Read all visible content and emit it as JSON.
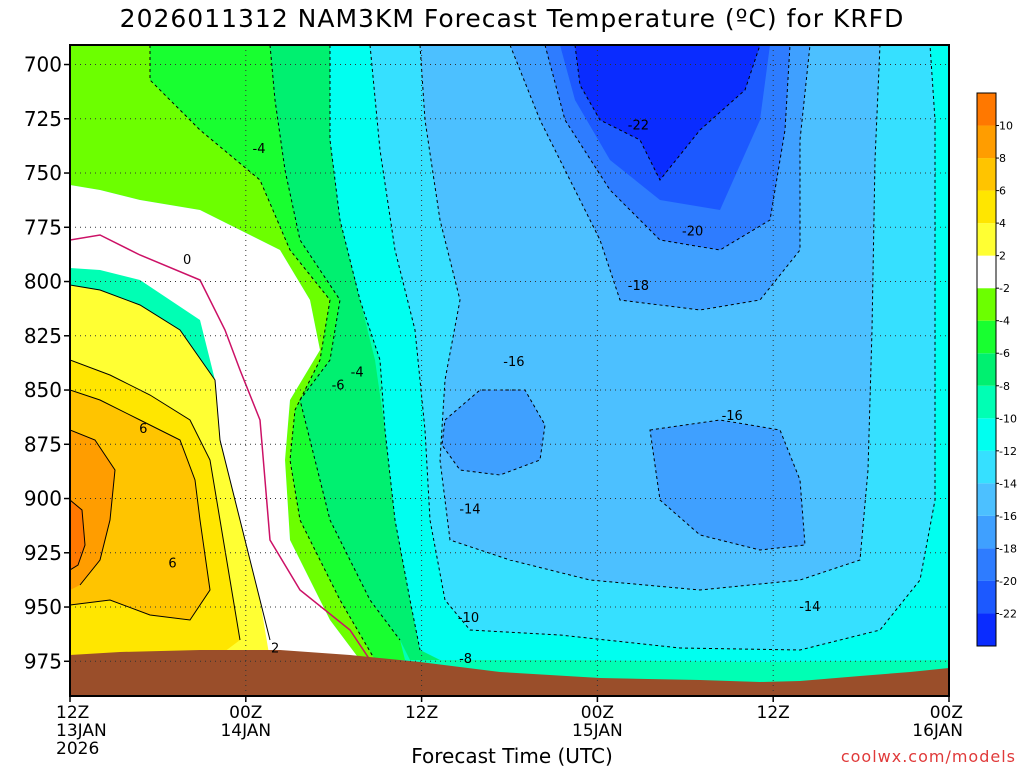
{
  "title": "2026011312 NAM3KM Forecast Temperature (ºC) for KRFD",
  "watermark": "coolwx.com/models",
  "chart_data": {
    "type": "heatmap",
    "title": "2026011312 NAM3KM Forecast Temperature (ºC) for KRFD",
    "xlabel": "Forecast Time (UTC)",
    "ylabel": "",
    "x_ticks": [
      {
        "hour": 0,
        "lines": [
          "12Z",
          "13JAN",
          "2026"
        ]
      },
      {
        "hour": 12,
        "lines": [
          "00Z",
          "14JAN"
        ]
      },
      {
        "hour": 24,
        "lines": [
          "12Z"
        ]
      },
      {
        "hour": 36,
        "lines": [
          "00Z",
          "15JAN"
        ]
      },
      {
        "hour": 48,
        "lines": [
          "12Z"
        ]
      },
      {
        "hour": 60,
        "lines": [
          "00Z",
          "16JAN"
        ]
      }
    ],
    "xlim": [
      0,
      60
    ],
    "y_ticks": [
      700,
      725,
      750,
      775,
      800,
      825,
      850,
      875,
      900,
      925,
      950,
      975
    ],
    "ylim": [
      991,
      691
    ],
    "colorbar": {
      "levels": [
        -24,
        -22,
        -20,
        -18,
        -16,
        -14,
        -12,
        -10,
        -8,
        -6,
        -4,
        -2,
        2,
        4,
        6,
        8,
        10,
        12
      ],
      "labels": [
        -22,
        -20,
        -18,
        -16,
        -14,
        -12,
        -10,
        -8,
        -6,
        -4,
        -2,
        2,
        4,
        6,
        8,
        10
      ],
      "colors": [
        "#0a2cff",
        "#1c59ff",
        "#2e7cff",
        "#3fa0ff",
        "#4cc0ff",
        "#36e0ff",
        "#00fff0",
        "#00ffb4",
        "#00f070",
        "#18ff30",
        "#6cff00",
        "#ffffff",
        "#ffff33",
        "#ffe600",
        "#ffc400",
        "#ff9d00",
        "#ff7800"
      ]
    },
    "contour_labels": [
      {
        "value": -4,
        "hour": 12.9,
        "p": 739
      },
      {
        "value": 0,
        "hour": 8.0,
        "p": 790
      },
      {
        "value": 6,
        "hour": 5.0,
        "p": 868
      },
      {
        "value": 6,
        "hour": 7.0,
        "p": 930
      },
      {
        "value": 2,
        "hour": 14.0,
        "p": 969
      },
      {
        "value": -4,
        "hour": 19.6,
        "p": 842
      },
      {
        "value": -6,
        "hour": 18.3,
        "p": 848
      },
      {
        "value": -22,
        "hour": 38.8,
        "p": 728
      },
      {
        "value": -20,
        "hour": 42.5,
        "p": 777
      },
      {
        "value": -18,
        "hour": 38.8,
        "p": 802
      },
      {
        "value": -16,
        "hour": 30.3,
        "p": 837
      },
      {
        "value": -16,
        "hour": 45.2,
        "p": 862
      },
      {
        "value": -14,
        "hour": 27.3,
        "p": 905
      },
      {
        "value": -10,
        "hour": 27.2,
        "p": 955
      },
      {
        "value": -8,
        "hour": 27.0,
        "p": 974
      },
      {
        "value": -14,
        "hour": 50.5,
        "p": 950
      }
    ],
    "terrain_color": "#9a4e2a",
    "grid": "dotted"
  }
}
